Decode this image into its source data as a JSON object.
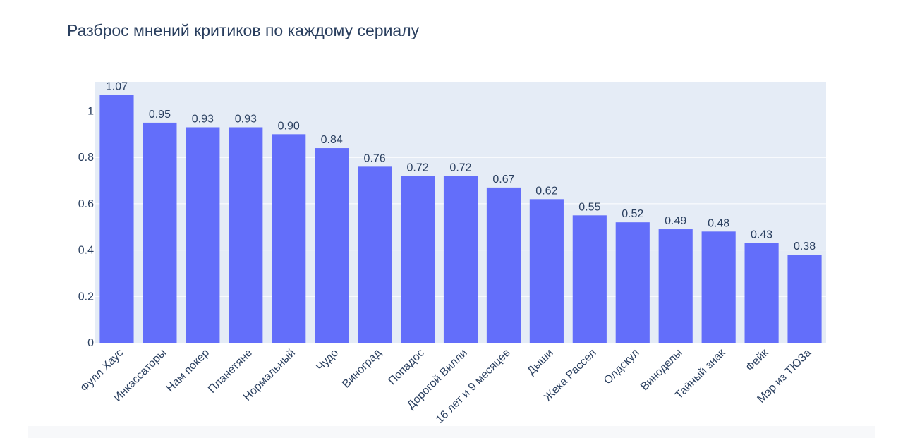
{
  "chart_data": {
    "type": "bar",
    "title": "Разброс мнений критиков по каждому сериалу",
    "xlabel": "",
    "ylabel": "",
    "categories": [
      "Фулл Хаус",
      "Инкассаторы",
      "Нам покер",
      "Планетяне",
      "Нормальный",
      "Чудо",
      "Виноград",
      "Попадос",
      "Дорогой Вилли",
      "16 лет и 9 месяцев",
      "Дыши",
      "Жека Рассел",
      "Олдскул",
      "Виноделы",
      "Тайный знак",
      "Фейк",
      "Мэр из ТЮЗа"
    ],
    "values": [
      1.07,
      0.95,
      0.93,
      0.93,
      0.9,
      0.84,
      0.76,
      0.72,
      0.72,
      0.67,
      0.62,
      0.55,
      0.52,
      0.49,
      0.48,
      0.43,
      0.38
    ],
    "value_labels": [
      "1.07",
      "0.95",
      "0.93",
      "0.93",
      "0.90",
      "0.84",
      "0.76",
      "0.72",
      "0.72",
      "0.67",
      "0.62",
      "0.55",
      "0.52",
      "0.49",
      "0.48",
      "0.43",
      "0.38"
    ],
    "ylim": [
      0,
      1.1263
    ],
    "yticks": [
      0,
      0.2,
      0.4,
      0.6,
      0.8,
      1
    ],
    "ytick_labels": [
      "0",
      "0.2",
      "0.4",
      "0.6",
      "0.8",
      "1"
    ],
    "grid": true,
    "legend": "none",
    "colors": {
      "bar": "#636efa",
      "plot_background": "#e5ecf6",
      "gridline": "#ffffff",
      "text": "#2a3f5f"
    }
  }
}
